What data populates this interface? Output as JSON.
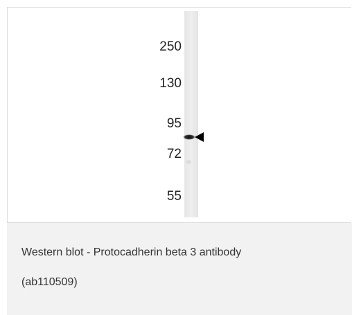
{
  "figure": {
    "markers": [
      250,
      130,
      95,
      72,
      55
    ]
  },
  "caption": {
    "lines": [
      "Western blot - Protocadherin beta 3 antibody",
      "(ab110509)"
    ]
  }
}
